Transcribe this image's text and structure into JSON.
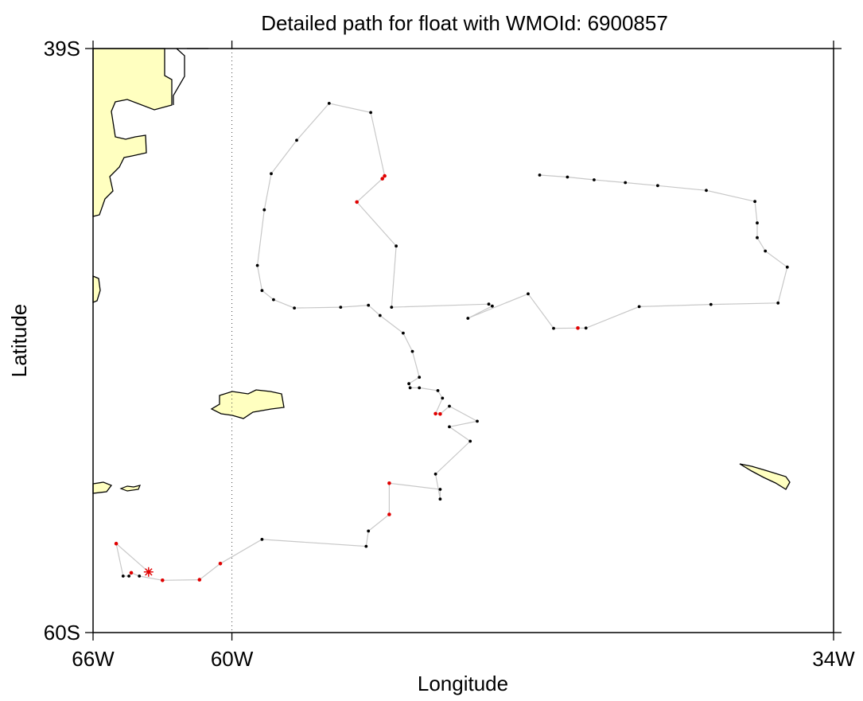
{
  "title": "Detailed path for float with WMOId: 6900857",
  "xlabel": "Longitude",
  "ylabel": "Latitude",
  "colors": {
    "land": "#ffffc0",
    "coast": "#000000",
    "track": "#c8c8c8",
    "point": "#000000",
    "point_highlight": "#e00000",
    "marker": "#e00000"
  },
  "chart_data": {
    "type": "scatter",
    "x_range_deg_lon": [
      -66,
      -34
    ],
    "y_range_deg_lat": [
      -60,
      -39
    ],
    "x_ticks": [
      {
        "value": -66,
        "label": "66W"
      },
      {
        "value": -60,
        "label": "60W"
      },
      {
        "value": -34,
        "label": "34W"
      }
    ],
    "y_ticks": [
      {
        "value": -39,
        "label": "39S"
      },
      {
        "value": -60,
        "label": "60S"
      }
    ],
    "reference_meridian": -60,
    "start_marker": {
      "lon": -63.6,
      "lat": -57.82,
      "symbol": "asterisk",
      "color": "#e00000"
    },
    "track": [
      {
        "lon": -63.6,
        "lat": -57.82,
        "flag": "red"
      },
      {
        "lon": -65.0,
        "lat": -56.8,
        "flag": "red"
      },
      {
        "lon": -64.7,
        "lat": -57.97,
        "flag": "black"
      },
      {
        "lon": -64.45,
        "lat": -57.97,
        "flag": "black"
      },
      {
        "lon": -64.35,
        "lat": -57.85,
        "flag": "red"
      },
      {
        "lon": -64.0,
        "lat": -57.97,
        "flag": "black"
      },
      {
        "lon": -63.0,
        "lat": -58.12,
        "flag": "red"
      },
      {
        "lon": -61.4,
        "lat": -58.1,
        "flag": "red"
      },
      {
        "lon": -60.5,
        "lat": -57.52,
        "flag": "red"
      },
      {
        "lon": -58.7,
        "lat": -56.65,
        "flag": "black"
      },
      {
        "lon": -54.2,
        "lat": -56.9,
        "flag": "black"
      },
      {
        "lon": -54.1,
        "lat": -56.35,
        "flag": "black"
      },
      {
        "lon": -53.2,
        "lat": -55.75,
        "flag": "red"
      },
      {
        "lon": -53.2,
        "lat": -54.63,
        "flag": "red"
      },
      {
        "lon": -51.0,
        "lat": -54.85,
        "flag": "black"
      },
      {
        "lon": -51.0,
        "lat": -55.2,
        "flag": "black"
      },
      {
        "lon": -51.2,
        "lat": -54.3,
        "flag": "black"
      },
      {
        "lon": -49.7,
        "lat": -53.12,
        "flag": "black"
      },
      {
        "lon": -50.6,
        "lat": -52.6,
        "flag": "black"
      },
      {
        "lon": -49.4,
        "lat": -52.4,
        "flag": "black"
      },
      {
        "lon": -50.6,
        "lat": -51.86,
        "flag": "black"
      },
      {
        "lon": -51.0,
        "lat": -52.14,
        "flag": "red"
      },
      {
        "lon": -51.2,
        "lat": -52.13,
        "flag": "red"
      },
      {
        "lon": -50.9,
        "lat": -51.57,
        "flag": "black"
      },
      {
        "lon": -51.1,
        "lat": -51.3,
        "flag": "black"
      },
      {
        "lon": -51.9,
        "lat": -51.2,
        "flag": "black"
      },
      {
        "lon": -52.3,
        "lat": -51.2,
        "flag": "black"
      },
      {
        "lon": -52.35,
        "lat": -51.05,
        "flag": "black"
      },
      {
        "lon": -51.9,
        "lat": -50.82,
        "flag": "black"
      },
      {
        "lon": -52.2,
        "lat": -49.89,
        "flag": "black"
      },
      {
        "lon": -52.6,
        "lat": -49.23,
        "flag": "black"
      },
      {
        "lon": -53.6,
        "lat": -48.6,
        "flag": "black"
      },
      {
        "lon": -54.1,
        "lat": -48.23,
        "flag": "black"
      },
      {
        "lon": -55.3,
        "lat": -48.3,
        "flag": "black"
      },
      {
        "lon": -57.3,
        "lat": -48.33,
        "flag": "black"
      },
      {
        "lon": -58.2,
        "lat": -48.03,
        "flag": "black"
      },
      {
        "lon": -58.7,
        "lat": -47.7,
        "flag": "black"
      },
      {
        "lon": -58.9,
        "lat": -46.8,
        "flag": "black"
      },
      {
        "lon": -58.6,
        "lat": -44.8,
        "flag": "black"
      },
      {
        "lon": -58.3,
        "lat": -43.5,
        "flag": "black"
      },
      {
        "lon": -57.2,
        "lat": -42.3,
        "flag": "black"
      },
      {
        "lon": -55.8,
        "lat": -40.97,
        "flag": "black"
      },
      {
        "lon": -54.0,
        "lat": -41.3,
        "flag": "black"
      },
      {
        "lon": -53.4,
        "lat": -43.58,
        "flag": "red"
      },
      {
        "lon": -53.5,
        "lat": -43.68,
        "flag": "red"
      },
      {
        "lon": -54.6,
        "lat": -44.52,
        "flag": "red"
      },
      {
        "lon": -52.9,
        "lat": -46.1,
        "flag": "black"
      },
      {
        "lon": -53.1,
        "lat": -48.3,
        "flag": "black"
      },
      {
        "lon": -48.9,
        "lat": -48.19,
        "flag": "black"
      },
      {
        "lon": -48.75,
        "lat": -48.26,
        "flag": "black"
      },
      {
        "lon": -49.8,
        "lat": -48.7,
        "flag": "black"
      },
      {
        "lon": -47.2,
        "lat": -47.82,
        "flag": "black"
      },
      {
        "lon": -46.1,
        "lat": -49.06,
        "flag": "black"
      },
      {
        "lon": -45.05,
        "lat": -49.05,
        "flag": "red"
      },
      {
        "lon": -44.7,
        "lat": -49.05,
        "flag": "black"
      },
      {
        "lon": -42.4,
        "lat": -48.28,
        "flag": "black"
      },
      {
        "lon": -39.3,
        "lat": -48.2,
        "flag": "black"
      },
      {
        "lon": -36.4,
        "lat": -48.15,
        "flag": "black"
      },
      {
        "lon": -36.0,
        "lat": -46.86,
        "flag": "black"
      },
      {
        "lon": -36.95,
        "lat": -46.28,
        "flag": "black"
      },
      {
        "lon": -37.3,
        "lat": -45.8,
        "flag": "black"
      },
      {
        "lon": -37.3,
        "lat": -45.27,
        "flag": "black"
      },
      {
        "lon": -37.4,
        "lat": -44.5,
        "flag": "black"
      },
      {
        "lon": -39.5,
        "lat": -44.1,
        "flag": "black"
      },
      {
        "lon": -41.6,
        "lat": -43.93,
        "flag": "black"
      },
      {
        "lon": -43.0,
        "lat": -43.82,
        "flag": "black"
      },
      {
        "lon": -44.35,
        "lat": -43.72,
        "flag": "black"
      },
      {
        "lon": -45.5,
        "lat": -43.62,
        "flag": "black"
      },
      {
        "lon": -46.7,
        "lat": -43.55,
        "flag": "black"
      }
    ]
  }
}
